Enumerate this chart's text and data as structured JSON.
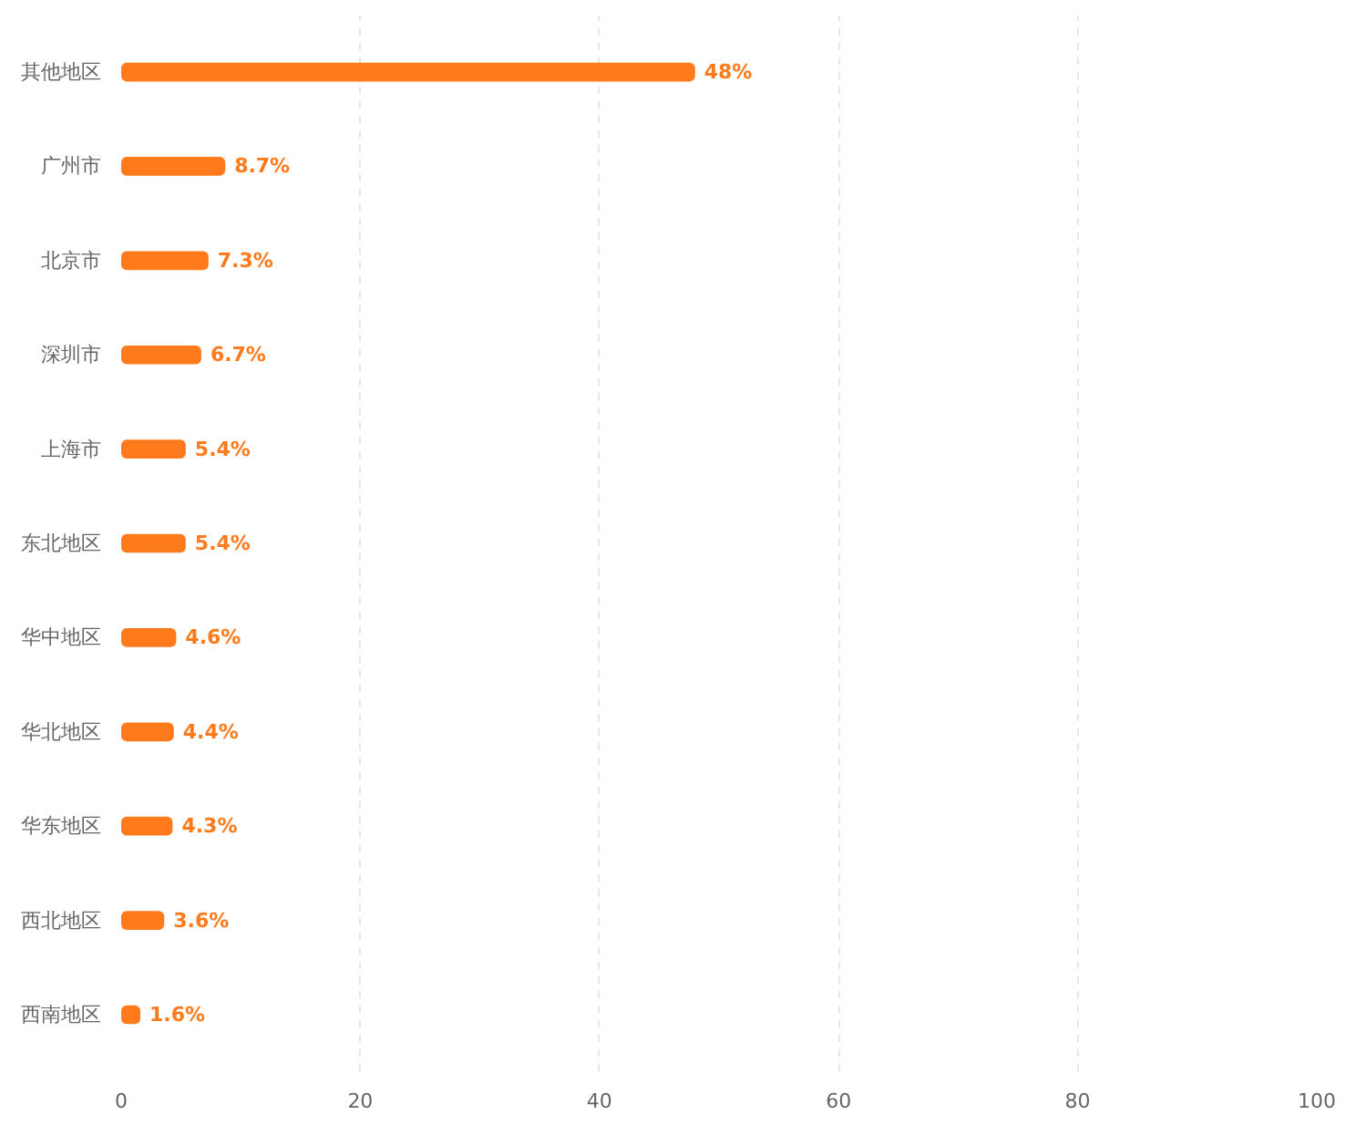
{
  "chart_data": {
    "type": "bar",
    "orientation": "horizontal",
    "categories": [
      "其他地区",
      "广州市",
      "北京市",
      "深圳市",
      "上海市",
      "东北地区",
      "华中地区",
      "华北地区",
      "华东地区",
      "西北地区",
      "西南地区"
    ],
    "values": [
      48,
      8.7,
      7.3,
      6.7,
      5.4,
      5.4,
      4.6,
      4.4,
      4.3,
      3.6,
      1.6
    ],
    "value_labels": [
      "48%",
      "8.7%",
      "7.3%",
      "6.7%",
      "5.4%",
      "5.4%",
      "4.6%",
      "4.4%",
      "4.3%",
      "3.6%",
      "1.6%"
    ],
    "color": "#ff7a1a",
    "xlim": [
      0,
      100
    ],
    "xticks": [
      0,
      20,
      40,
      60,
      80,
      100
    ],
    "grid": "x"
  }
}
